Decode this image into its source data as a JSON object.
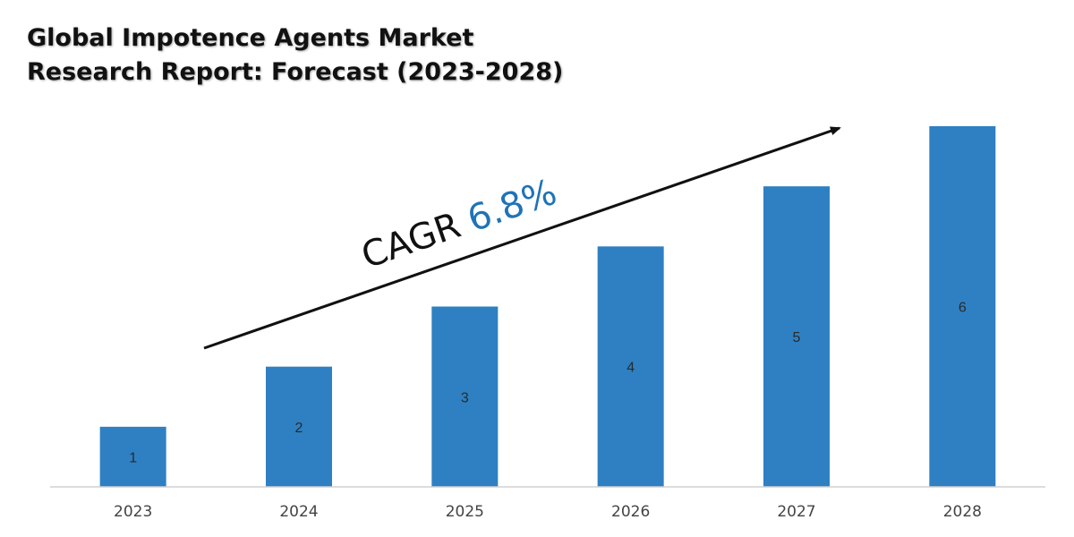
{
  "title": {
    "line1": "Global Impotence Agents Market",
    "line2": "Research Report: Forecast (2023-2028)"
  },
  "cagr": {
    "label": "CAGR",
    "value": "6.8%",
    "label_color": "#111111",
    "value_color": "#1f73b7"
  },
  "colors": {
    "bar": "#2e80c2",
    "axis": "#d0d0d0",
    "arrow": "#111111",
    "tick_label": "#444444",
    "data_label": "#2a2a2a"
  },
  "chart_data": {
    "type": "bar",
    "categories": [
      "2023",
      "2024",
      "2025",
      "2026",
      "2027",
      "2028"
    ],
    "values": [
      1,
      2,
      3,
      4,
      5,
      6
    ],
    "data_labels": [
      "1",
      "2",
      "3",
      "4",
      "5",
      "6"
    ],
    "title": "Global Impotence Agents Market Research Report: Forecast (2023-2028)",
    "xlabel": "",
    "ylabel": "",
    "ylim": [
      0,
      6
    ],
    "grid": false,
    "legend": "none",
    "annotation": "CAGR 6.8%"
  }
}
